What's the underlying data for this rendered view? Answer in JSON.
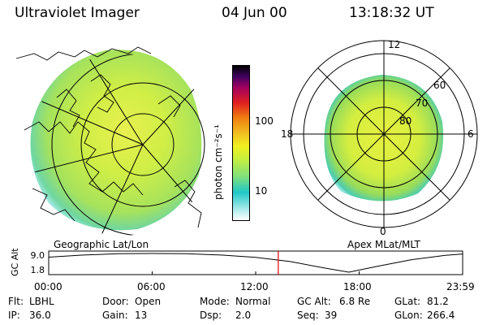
{
  "header": {
    "instrument": "Ultraviolet Imager",
    "date": "04 Jun 00",
    "time": "13:18:32 UT"
  },
  "geo_panel": {
    "label": "Geographic Lat/Lon"
  },
  "polar_panel": {
    "label": "Apex MLat/MLT",
    "mlt_labels": {
      "top": "12",
      "right": "6",
      "bottom": "0",
      "left": "18"
    },
    "lat_labels": [
      "60",
      "70",
      "80"
    ]
  },
  "colorbar": {
    "unit_label": "photon cm⁻²s⁻¹",
    "ticks": [
      "100",
      "10"
    ],
    "scale": "log",
    "colors": [
      "#ffffff",
      "#9fe8e8",
      "#20c8c8",
      "#7ee07e",
      "#c8f03c",
      "#f0f020",
      "#f0c020",
      "#f08010",
      "#e02020",
      "#a00060",
      "#400060",
      "#000000"
    ]
  },
  "chart_data": [
    {
      "type": "line",
      "ylabel": "GC Alt",
      "y_ticks": [
        "9.0",
        "1.8"
      ],
      "x_ticks": [
        "00:00",
        "06:00",
        "12:00",
        "18:00",
        "23:59"
      ],
      "ylim": [
        1.8,
        9.0
      ],
      "x": [
        0,
        2,
        4,
        6,
        8,
        10,
        12,
        14,
        16,
        17.4,
        19,
        21,
        23,
        24
      ],
      "values": [
        7.6,
        8.4,
        8.9,
        9.0,
        8.9,
        8.4,
        7.5,
        5.9,
        3.4,
        1.8,
        4.0,
        6.6,
        8.3,
        8.8
      ],
      "marker_x": 13.31
    }
  ],
  "footer": [
    [
      {
        "label": "Flt:",
        "value": "LBHL"
      },
      {
        "label": "Door:",
        "value": "Open"
      },
      {
        "label": "Mode:",
        "value": "Normal"
      },
      {
        "label": "GC Alt:",
        "value": "6.8 Re"
      },
      {
        "label": "GLat:",
        "value": "81.2"
      }
    ],
    [
      {
        "label": "IP:",
        "value": "36.0"
      },
      {
        "label": "Gain:",
        "value": "13"
      },
      {
        "label": "Dsp:",
        "value": "2.0"
      },
      {
        "label": "Seq:",
        "value": "39"
      },
      {
        "label": "GLon:",
        "value": "266.4"
      }
    ]
  ]
}
